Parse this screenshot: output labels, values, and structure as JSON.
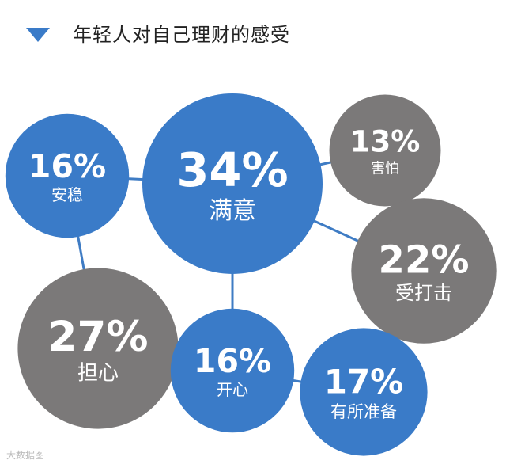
{
  "header": {
    "title": "年轻人对自己理财的感受"
  },
  "watermark": "大数据图",
  "colors": {
    "blue": "#3a7bc8",
    "gray": "#7b7979",
    "line": "#3f7cc4",
    "text": "#ffffff"
  },
  "chart_data": {
    "type": "bubble",
    "title": "年轻人对自己理财的感受",
    "items": [
      {
        "label": "满意",
        "value": 34,
        "value_text": "34%",
        "color": "blue"
      },
      {
        "label": "安稳",
        "value": 16,
        "value_text": "16%",
        "color": "blue"
      },
      {
        "label": "害怕",
        "value": 13,
        "value_text": "13%",
        "color": "gray"
      },
      {
        "label": "受打击",
        "value": 22,
        "value_text": "22%",
        "color": "gray"
      },
      {
        "label": "担心",
        "value": 27,
        "value_text": "27%",
        "color": "gray"
      },
      {
        "label": "开心",
        "value": 16,
        "value_text": "16%",
        "color": "blue"
      },
      {
        "label": "有所准备",
        "value": 17,
        "value_text": "17%",
        "color": "blue"
      }
    ],
    "connections": [
      [
        "安稳",
        "满意"
      ],
      [
        "满意",
        "害怕"
      ],
      [
        "满意",
        "受打击"
      ],
      [
        "害怕",
        "受打击"
      ],
      [
        "满意",
        "开心"
      ],
      [
        "安稳",
        "担心"
      ],
      [
        "担心",
        "开心"
      ],
      [
        "开心",
        "有所准备"
      ],
      [
        "受打击",
        "有所准备"
      ]
    ]
  }
}
